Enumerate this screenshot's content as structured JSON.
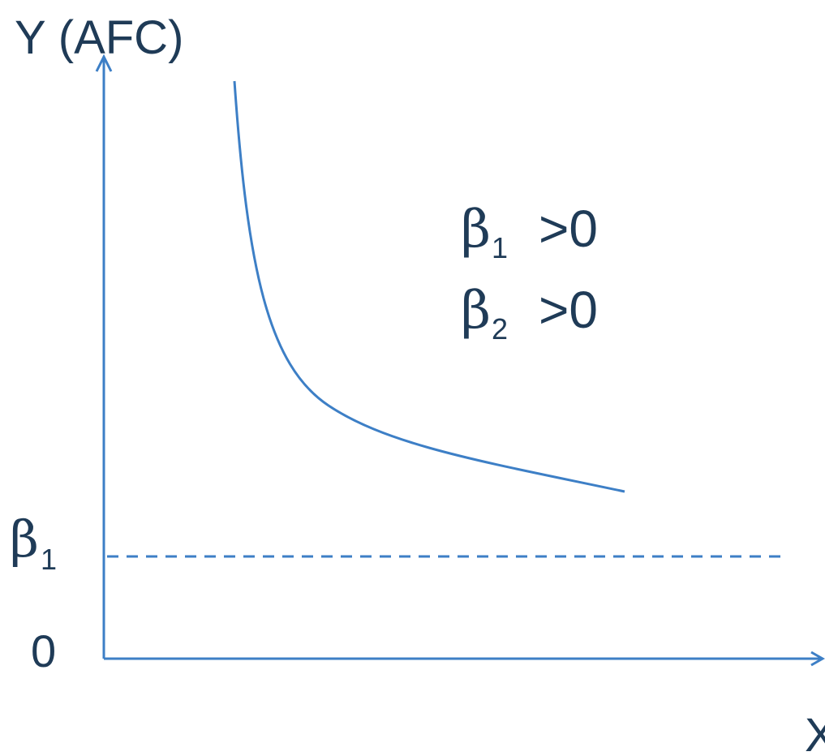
{
  "diagram": {
    "axis_color": "#3d7fc6",
    "text_color": "#1f3b57",
    "y_axis_label": "Y (AFC)",
    "x_axis_label": "X",
    "origin_label": "0",
    "beta1_label": {
      "symbol": "β",
      "subscript": "1"
    },
    "conditions": [
      {
        "symbol": "β",
        "subscript": "1",
        "relation": ">0"
      },
      {
        "symbol": "β",
        "subscript": "2",
        "relation": ">0"
      }
    ],
    "curve_type": "reciprocal (Y = β1 + β2/X)",
    "asymptote_style": "dashed"
  }
}
